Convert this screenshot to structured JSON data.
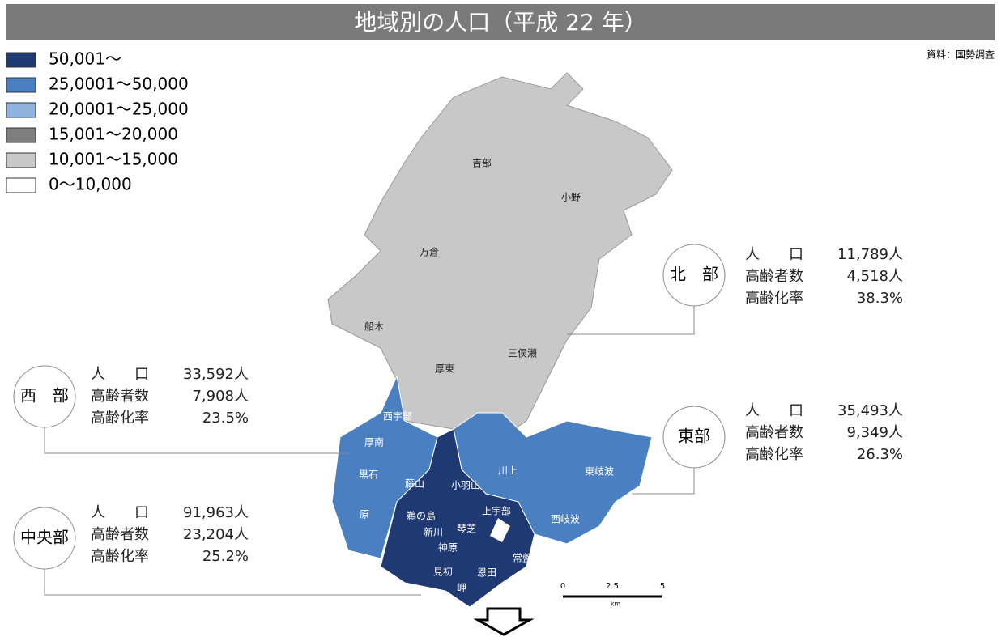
{
  "title": "地域別の人口（平成 22 年）",
  "source": "資料：国勢調査",
  "legend": [
    {
      "label": "50,001～",
      "color": "#1f3a73"
    },
    {
      "label": "25,0001～50,000",
      "color": "#4a7fc1"
    },
    {
      "label": "20,0001～25,000",
      "color": "#8fb3dc"
    },
    {
      "label": "15,001～20,000",
      "color": "#7f7f7f"
    },
    {
      "label": "10,001～15,000",
      "color": "#c8c8c8"
    },
    {
      "label": "0～10,000",
      "color": "#ffffff"
    }
  ],
  "regions": [
    {
      "name": "北　部",
      "rows": [
        {
          "label": "人　　口",
          "value": "11,789人"
        },
        {
          "label": "高齢者数",
          "value": "4,518人"
        },
        {
          "label": "高齢化率",
          "value": "38.3%"
        }
      ]
    },
    {
      "name": "西　部",
      "rows": [
        {
          "label": "人　　口",
          "value": "33,592人"
        },
        {
          "label": "高齢者数",
          "value": "7,908人"
        },
        {
          "label": "高齢化率",
          "value": "23.5%"
        }
      ]
    },
    {
      "name": "東部",
      "rows": [
        {
          "label": "人　　口",
          "value": "35,493人"
        },
        {
          "label": "高齢者数",
          "value": "9,349人"
        },
        {
          "label": "高齢化率",
          "value": "26.3%"
        }
      ]
    },
    {
      "name": "中央部",
      "rows": [
        {
          "label": "人　　口",
          "value": "91,963人"
        },
        {
          "label": "高齢者数",
          "value": "23,204人"
        },
        {
          "label": "高齢化率",
          "value": "25.2%"
        }
      ]
    }
  ],
  "places": [
    "吉部",
    "小野",
    "万倉",
    "船木",
    "三俣瀬",
    "厚東",
    "西宇部",
    "厚南",
    "黒石",
    "原",
    "藤山",
    "小羽山",
    "川上",
    "東岐波",
    "西岐波",
    "上宇部",
    "鵜の島",
    "新川",
    "琴芝",
    "神原",
    "常盤",
    "見初",
    "恩田",
    "岬"
  ],
  "scale": {
    "ticks": [
      "0",
      "2.5",
      "5"
    ],
    "unit": "km"
  }
}
